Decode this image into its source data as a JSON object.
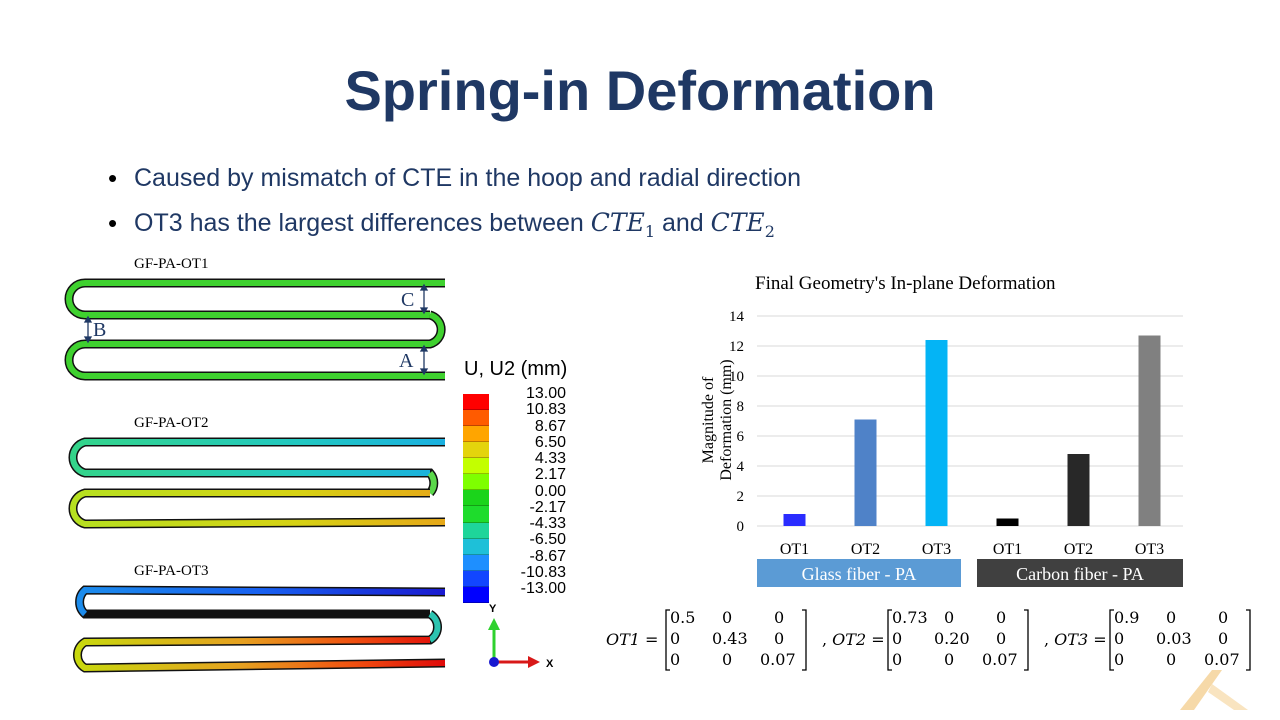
{
  "slide": {
    "title": "Spring-in Deformation",
    "bullets": [
      {
        "text": "Caused by mismatch of CTE in the hoop and radial direction"
      },
      {
        "pre": "OT3 has the largest differences between ",
        "sym1": "CTE",
        "sub1": "1",
        "mid": " and ",
        "sym2": "CTE",
        "sub2": "2"
      }
    ]
  },
  "figure": {
    "specimens": [
      "GF-PA-OT1",
      "GF-PA-OT2",
      "GF-PA-OT3"
    ],
    "dimension_labels": {
      "a": "A",
      "b": "B",
      "c": "C"
    },
    "contour_legend": {
      "title": "U, U2 (mm)",
      "values": [
        "13.00",
        "10.83",
        "8.67",
        "6.50",
        "4.33",
        "2.17",
        "0.00",
        "-2.17",
        "-4.33",
        "-6.50",
        "-8.67",
        "-10.83",
        "-13.00"
      ],
      "colors": [
        "#ff0000",
        "#ff5b00",
        "#ffa500",
        "#e4d40c",
        "#c3ff00",
        "#7eff00",
        "#1bd41b",
        "#1edc2c",
        "#1ed59a",
        "#1ec0d8",
        "#1e8fff",
        "#1246ff",
        "#0000ff"
      ]
    },
    "axes": {
      "y": "Y",
      "x": "X"
    }
  },
  "chart_data": {
    "type": "bar",
    "title": "Final Geometry's In-plane Deformation",
    "ylabel": "Magnitude of Deformation (mm)",
    "ylim": [
      0,
      14
    ],
    "yticks": [
      0,
      2,
      4,
      6,
      8,
      10,
      12,
      14
    ],
    "grid": true,
    "categories": [
      "OT1",
      "OT2",
      "OT3",
      "OT1",
      "OT2",
      "OT3"
    ],
    "values": [
      0.8,
      7.1,
      12.4,
      0.5,
      4.8,
      12.7
    ],
    "colors": [
      "#2a2cff",
      "#4f82c8",
      "#04b4f5",
      "#000000",
      "#282828",
      "#808080"
    ],
    "groups": [
      {
        "label": "Glass fiber - PA",
        "color": "#5b9bd5"
      },
      {
        "label": "Carbon fiber - PA",
        "color": "#404040"
      }
    ]
  },
  "matrices": [
    {
      "name": "OT1",
      "rows": [
        [
          "0.5",
          "0",
          "0"
        ],
        [
          "0",
          "0.43",
          "0"
        ],
        [
          "0",
          "0",
          "0.07"
        ]
      ]
    },
    {
      "name": "OT2",
      "rows": [
        [
          "0.73",
          "0",
          "0"
        ],
        [
          "0",
          "0.20",
          "0"
        ],
        [
          "0",
          "0",
          "0.07"
        ]
      ]
    },
    {
      "name": "OT3",
      "rows": [
        [
          "0.9",
          "0",
          "0"
        ],
        [
          "0",
          "0.03",
          "0"
        ],
        [
          "0",
          "0",
          "0.07"
        ]
      ]
    }
  ]
}
